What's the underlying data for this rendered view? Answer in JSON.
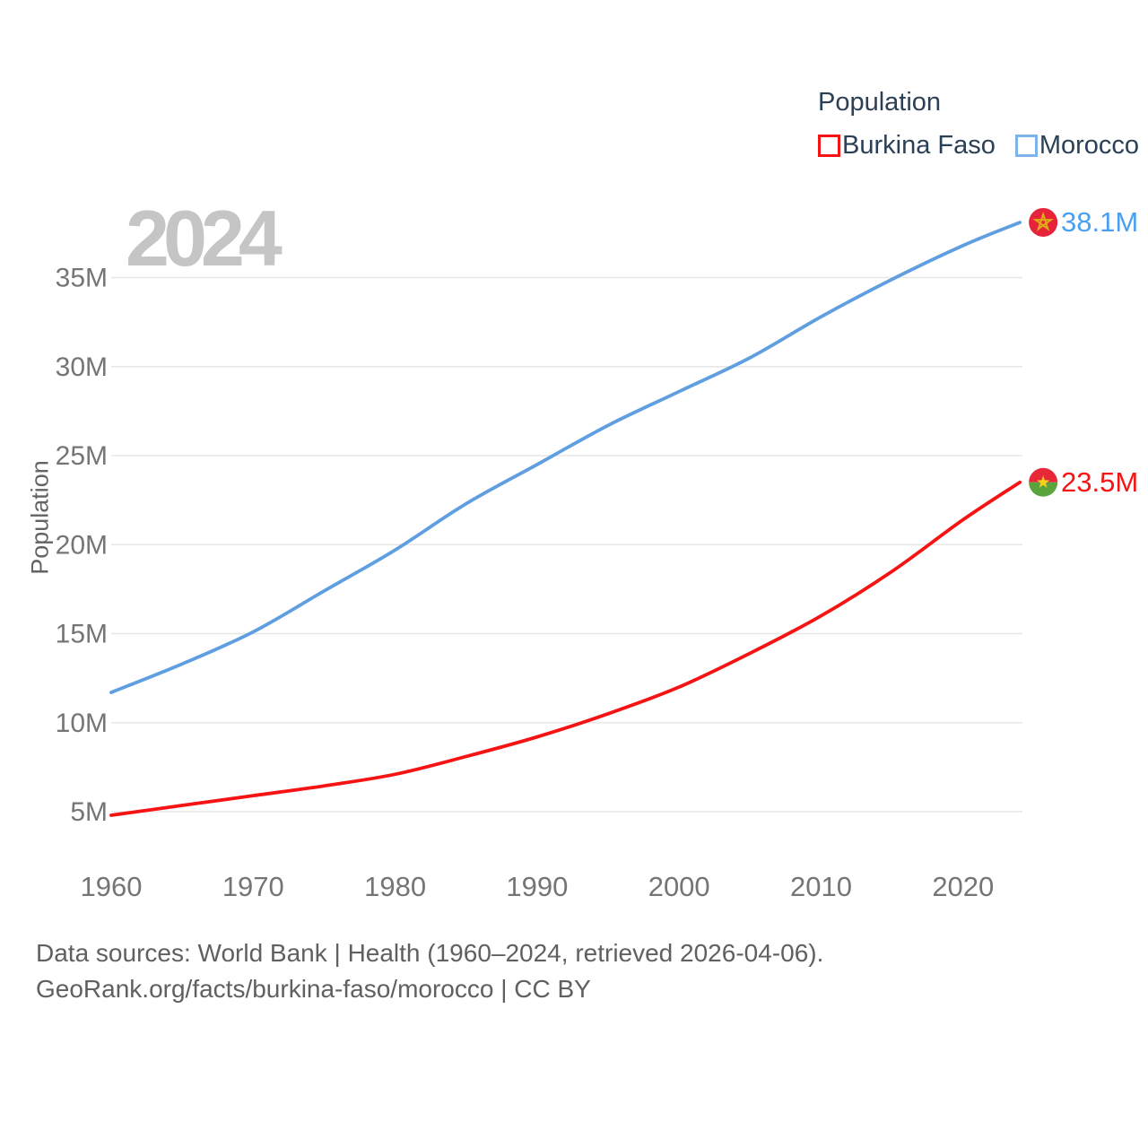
{
  "watermark": "2024",
  "legend": {
    "title": "Population",
    "items": [
      {
        "label": "Burkina Faso",
        "color": "#f51313"
      },
      {
        "label": "Morocco",
        "color": "#7cb3ea"
      }
    ]
  },
  "footer": {
    "line1": "Data sources: World Bank | Health (1960–2024, retrieved 2026-04-06).",
    "line2": "GeoRank.org/facts/burkina-faso/morocco | CC BY"
  },
  "colors": {
    "burkina_line": "#f51313",
    "burkina_label": "#f51313",
    "morocco_line": "#5f9fe1",
    "morocco_label": "#49a0f0",
    "gridline": "#e7e7e7",
    "tick_text": "#757575",
    "legend_text": "#2b4057",
    "watermark": "#c5c5c5"
  },
  "chart_data": {
    "type": "line",
    "title": "Population",
    "ylabel": "Population",
    "xlabel": "",
    "watermark_year": "2024",
    "x": [
      1960,
      1965,
      1970,
      1975,
      1980,
      1985,
      1990,
      1995,
      2000,
      2005,
      2010,
      2015,
      2020,
      2024
    ],
    "series": [
      {
        "name": "Burkina Faso",
        "color": "#f51313",
        "label_color": "#f51313",
        "end_label": "23.5M",
        "end_value": 23.5,
        "flag": "burkina-faso",
        "values": [
          4.8,
          5.35,
          5.9,
          6.45,
          7.1,
          8.1,
          9.2,
          10.5,
          12.0,
          13.9,
          16.0,
          18.5,
          21.4,
          23.5
        ]
      },
      {
        "name": "Morocco",
        "color": "#5f9fe1",
        "label_color": "#49a0f0",
        "end_label": "38.1M",
        "end_value": 38.1,
        "flag": "morocco",
        "values": [
          11.7,
          13.3,
          15.1,
          17.4,
          19.7,
          22.3,
          24.5,
          26.7,
          28.6,
          30.5,
          32.8,
          34.9,
          36.8,
          38.1
        ]
      }
    ],
    "yticks": [
      {
        "value": 5,
        "label": "5M"
      },
      {
        "value": 10,
        "label": "10M"
      },
      {
        "value": 15,
        "label": "15M"
      },
      {
        "value": 20,
        "label": "20M"
      },
      {
        "value": 25,
        "label": "25M"
      },
      {
        "value": 30,
        "label": "30M"
      },
      {
        "value": 35,
        "label": "35M"
      }
    ],
    "xticks": [
      1960,
      1970,
      1980,
      1990,
      2000,
      2010,
      2020
    ],
    "xlim": [
      1960,
      2024
    ],
    "ylim": [
      3.5,
      39
    ],
    "grid": "horizontal",
    "legend_position": "top-right"
  }
}
